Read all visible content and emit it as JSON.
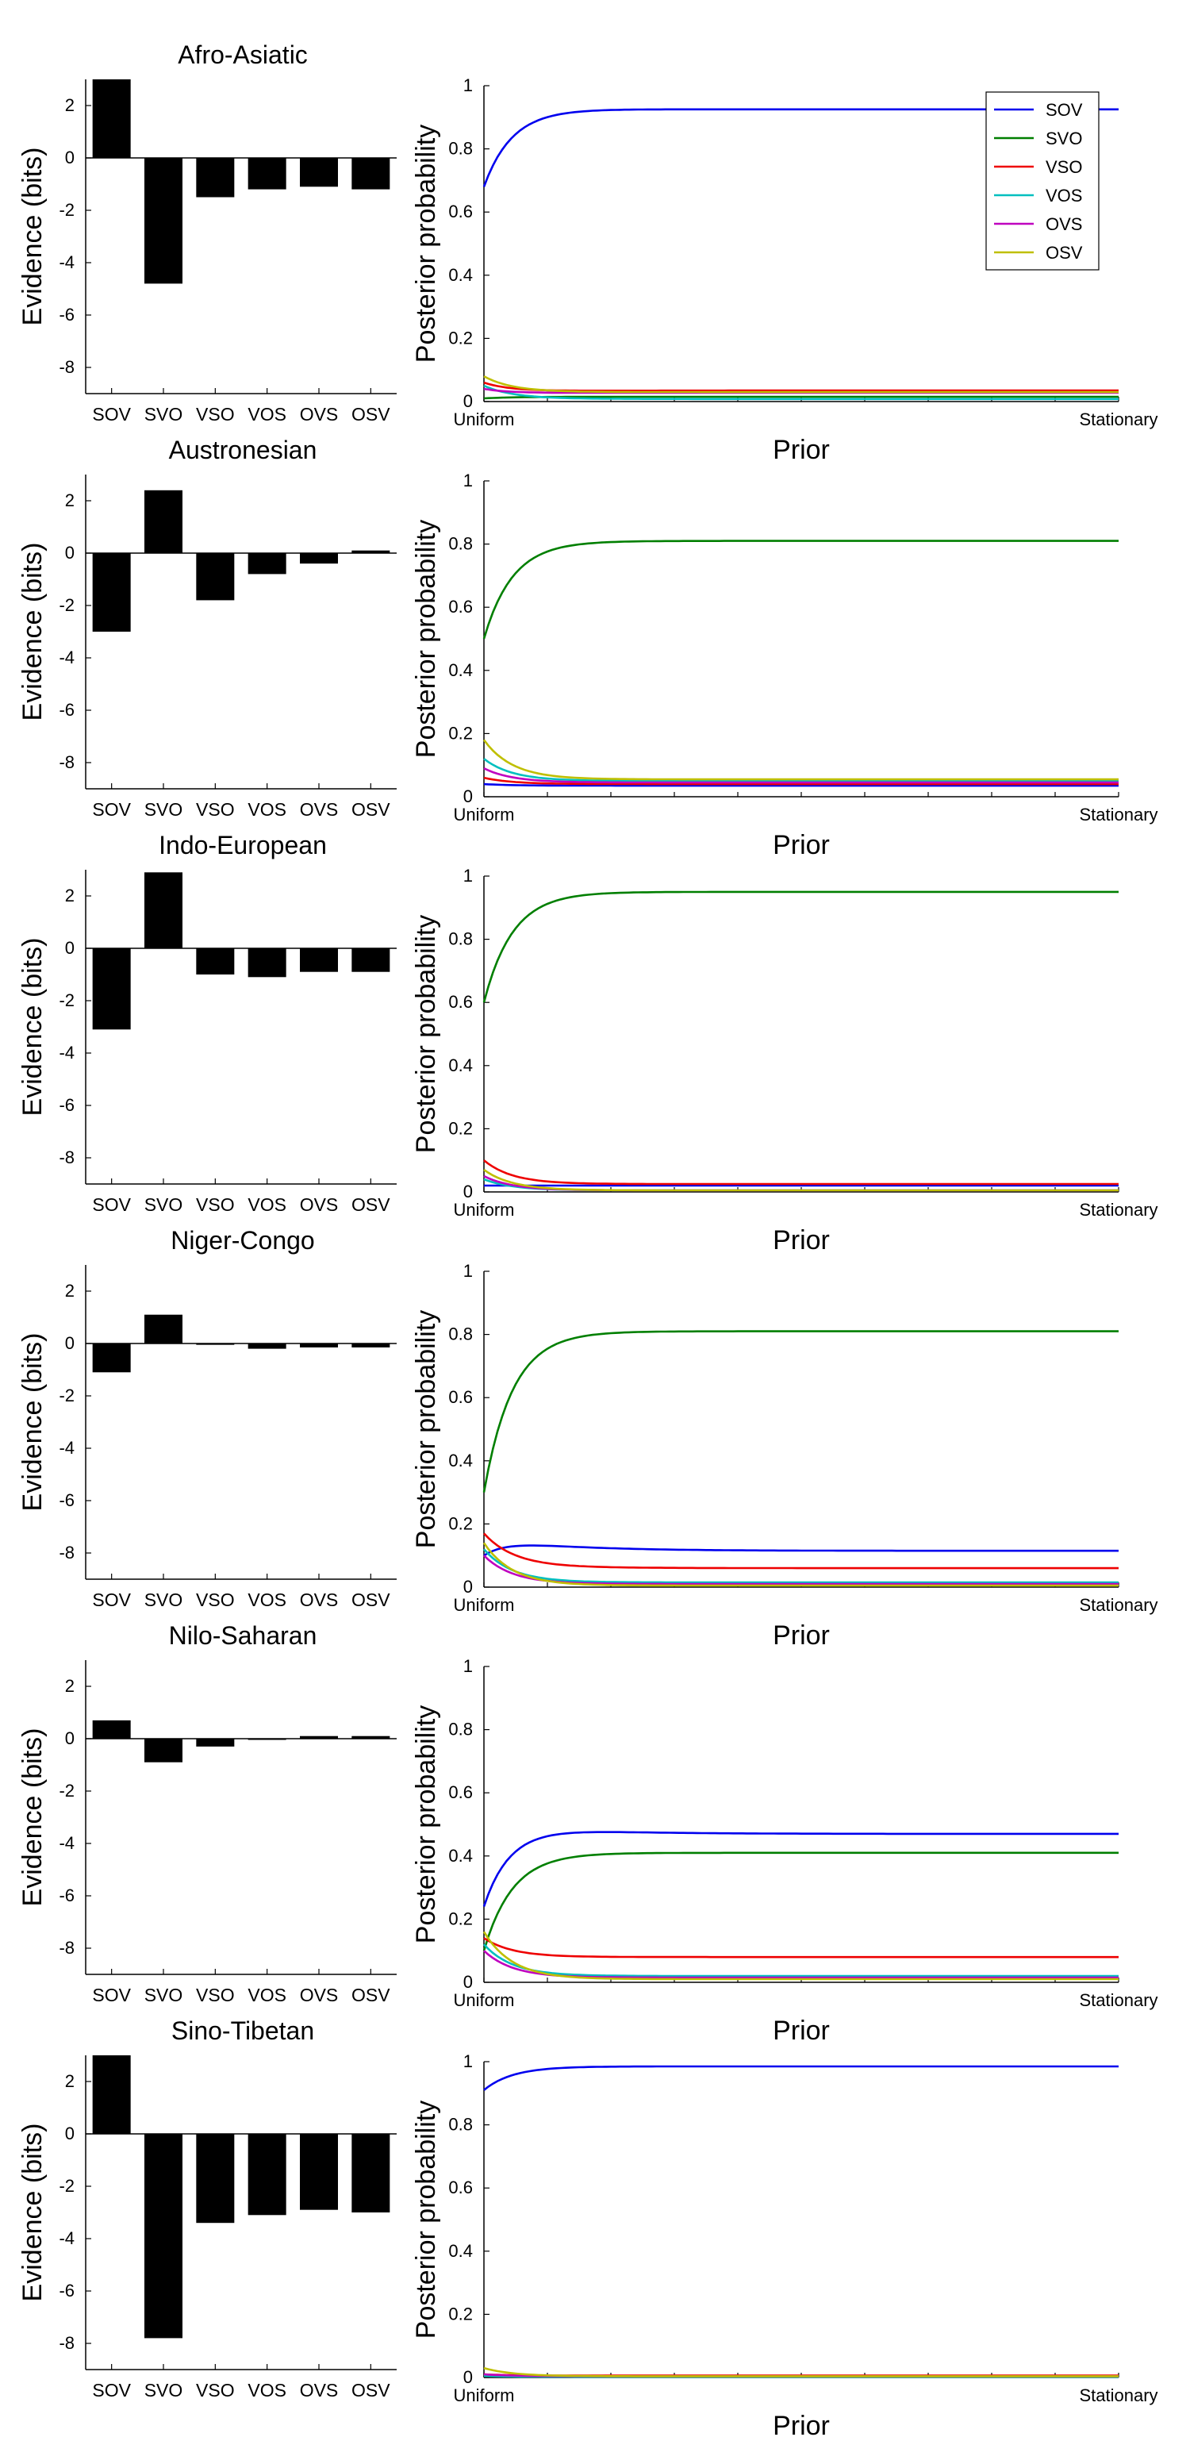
{
  "prior_ticks": [
    "Uniform",
    "Stationary"
  ],
  "evidence_ylabel": "Evidence (bits)",
  "posterior_ylabel": "Posterior probability",
  "posterior_xlabel": "Prior",
  "series_colors": {
    "SOV": "#0000ee",
    "SVO": "#007f00",
    "VSO": "#ee0000",
    "VOS": "#00bfbf",
    "OVS": "#bf00bf",
    "OSV": "#bfbf00"
  },
  "chart_data": [
    {
      "title": "Afro-Asiatic",
      "evidence": {
        "type": "bar",
        "categories": [
          "SOV",
          "SVO",
          "VSO",
          "VOS",
          "OVS",
          "OSV"
        ],
        "values": [
          3.0,
          -4.8,
          -1.5,
          -1.2,
          -1.1,
          -1.2
        ],
        "ylim": [
          -9,
          3
        ],
        "yticks": [
          2,
          0,
          -2,
          -4,
          -6,
          -8
        ]
      },
      "posterior": {
        "type": "line",
        "ylim": [
          0,
          1
        ],
        "yticks": [
          0,
          0.2,
          0.4,
          0.6,
          0.8,
          1
        ],
        "legend": "top-right",
        "series": [
          {
            "name": "SOV",
            "start": 0.68,
            "peak": 0.93,
            "end": 0.925
          },
          {
            "name": "SVO",
            "start": 0.01,
            "peak": 0.015,
            "end": 0.015
          },
          {
            "name": "VSO",
            "start": 0.06,
            "peak": 0.03,
            "end": 0.035
          },
          {
            "name": "VOS",
            "start": 0.05,
            "peak": 0.01,
            "end": 0.008
          },
          {
            "name": "OVS",
            "start": 0.04,
            "peak": 0.025,
            "end": 0.028
          },
          {
            "name": "OSV",
            "start": 0.08,
            "peak": 0.03,
            "end": 0.03
          }
        ]
      }
    },
    {
      "title": "Austronesian",
      "evidence": {
        "type": "bar",
        "categories": [
          "SOV",
          "SVO",
          "VSO",
          "VOS",
          "OVS",
          "OSV"
        ],
        "values": [
          -3.0,
          2.4,
          -1.8,
          -0.8,
          -0.4,
          0.1
        ],
        "ylim": [
          -9,
          3
        ],
        "yticks": [
          2,
          0,
          -2,
          -4,
          -6,
          -8
        ]
      },
      "posterior": {
        "type": "line",
        "ylim": [
          0,
          1
        ],
        "yticks": [
          0,
          0.2,
          0.4,
          0.6,
          0.8,
          1
        ],
        "series": [
          {
            "name": "SOV",
            "start": 0.04,
            "peak": 0.035,
            "end": 0.035
          },
          {
            "name": "SVO",
            "start": 0.5,
            "peak": 0.81,
            "end": 0.81
          },
          {
            "name": "VSO",
            "start": 0.06,
            "peak": 0.04,
            "end": 0.04
          },
          {
            "name": "VOS",
            "start": 0.12,
            "peak": 0.05,
            "end": 0.05
          },
          {
            "name": "OVS",
            "start": 0.09,
            "peak": 0.045,
            "end": 0.045
          },
          {
            "name": "OSV",
            "start": 0.18,
            "peak": 0.055,
            "end": 0.055
          }
        ]
      }
    },
    {
      "title": "Indo-European",
      "evidence": {
        "type": "bar",
        "categories": [
          "SOV",
          "SVO",
          "VSO",
          "VOS",
          "OVS",
          "OSV"
        ],
        "values": [
          -3.1,
          2.9,
          -1.0,
          -1.1,
          -0.9,
          -0.9
        ],
        "ylim": [
          -9,
          3
        ],
        "yticks": [
          2,
          0,
          -2,
          -4,
          -6,
          -8
        ]
      },
      "posterior": {
        "type": "line",
        "ylim": [
          0,
          1
        ],
        "yticks": [
          0,
          0.2,
          0.4,
          0.6,
          0.8,
          1
        ],
        "series": [
          {
            "name": "SOV",
            "start": 0.02,
            "peak": 0.02,
            "end": 0.02
          },
          {
            "name": "SVO",
            "start": 0.6,
            "peak": 0.95,
            "end": 0.95
          },
          {
            "name": "VSO",
            "start": 0.1,
            "peak": 0.025,
            "end": 0.025
          },
          {
            "name": "VOS",
            "start": 0.04,
            "peak": 0.005,
            "end": 0.005
          },
          {
            "name": "OVS",
            "start": 0.05,
            "peak": 0.005,
            "end": 0.005
          },
          {
            "name": "OSV",
            "start": 0.07,
            "peak": 0.005,
            "end": 0.005
          }
        ]
      }
    },
    {
      "title": "Niger-Congo",
      "evidence": {
        "type": "bar",
        "categories": [
          "SOV",
          "SVO",
          "VSO",
          "VOS",
          "OVS",
          "OSV"
        ],
        "values": [
          -1.1,
          1.1,
          -0.05,
          -0.2,
          -0.15,
          -0.15
        ],
        "ylim": [
          -9,
          3
        ],
        "yticks": [
          2,
          0,
          -2,
          -4,
          -6,
          -8
        ]
      },
      "posterior": {
        "type": "line",
        "ylim": [
          0,
          1
        ],
        "yticks": [
          0,
          0.2,
          0.4,
          0.6,
          0.8,
          1
        ],
        "series": [
          {
            "name": "SOV",
            "start": 0.1,
            "peak": 0.16,
            "end": 0.115
          },
          {
            "name": "SVO",
            "start": 0.3,
            "peak": 0.81,
            "end": 0.81
          },
          {
            "name": "VSO",
            "start": 0.17,
            "peak": 0.07,
            "end": 0.06
          },
          {
            "name": "VOS",
            "start": 0.12,
            "peak": 0.015,
            "end": 0.015
          },
          {
            "name": "OVS",
            "start": 0.1,
            "peak": 0.01,
            "end": 0.01
          },
          {
            "name": "OSV",
            "start": 0.14,
            "peak": 0.005,
            "end": 0.005
          }
        ]
      }
    },
    {
      "title": "Nilo-Saharan",
      "evidence": {
        "type": "bar",
        "categories": [
          "SOV",
          "SVO",
          "VSO",
          "VOS",
          "OVS",
          "OSV"
        ],
        "values": [
          0.7,
          -0.9,
          -0.3,
          0.0,
          0.1,
          0.1
        ],
        "ylim": [
          -9,
          3
        ],
        "yticks": [
          2,
          0,
          -2,
          -4,
          -6,
          -8
        ]
      },
      "posterior": {
        "type": "line",
        "ylim": [
          0,
          1
        ],
        "yticks": [
          0,
          0.2,
          0.4,
          0.6,
          0.8,
          1
        ],
        "series": [
          {
            "name": "SOV",
            "start": 0.24,
            "peak": 0.515,
            "end": 0.47
          },
          {
            "name": "SVO",
            "start": 0.1,
            "peak": 0.41,
            "end": 0.41
          },
          {
            "name": "VSO",
            "start": 0.14,
            "peak": 0.08,
            "end": 0.08
          },
          {
            "name": "VOS",
            "start": 0.12,
            "peak": 0.02,
            "end": 0.02
          },
          {
            "name": "OVS",
            "start": 0.1,
            "peak": 0.015,
            "end": 0.015
          },
          {
            "name": "OSV",
            "start": 0.16,
            "peak": 0.01,
            "end": 0.01
          }
        ]
      }
    },
    {
      "title": "Sino-Tibetan",
      "evidence": {
        "type": "bar",
        "categories": [
          "SOV",
          "SVO",
          "VSO",
          "VOS",
          "OVS",
          "OSV"
        ],
        "values": [
          3.0,
          -7.8,
          -3.4,
          -3.1,
          -2.9,
          -3.0
        ],
        "ylim": [
          -9,
          3
        ],
        "yticks": [
          2,
          0,
          -2,
          -4,
          -6,
          -8
        ]
      },
      "posterior": {
        "type": "line",
        "ylim": [
          0,
          1
        ],
        "yticks": [
          0,
          0.2,
          0.4,
          0.6,
          0.8,
          1
        ],
        "series": [
          {
            "name": "SOV",
            "start": 0.91,
            "peak": 0.985,
            "end": 0.985
          },
          {
            "name": "SVO",
            "start": 0.005,
            "peak": 0.003,
            "end": 0.003
          },
          {
            "name": "VSO",
            "start": 0.01,
            "peak": 0.006,
            "end": 0.006
          },
          {
            "name": "VOS",
            "start": 0.005,
            "peak": 0.002,
            "end": 0.002
          },
          {
            "name": "OVS",
            "start": 0.01,
            "peak": 0.004,
            "end": 0.004
          },
          {
            "name": "OSV",
            "start": 0.03,
            "peak": 0.004,
            "end": 0.004
          }
        ]
      }
    }
  ]
}
